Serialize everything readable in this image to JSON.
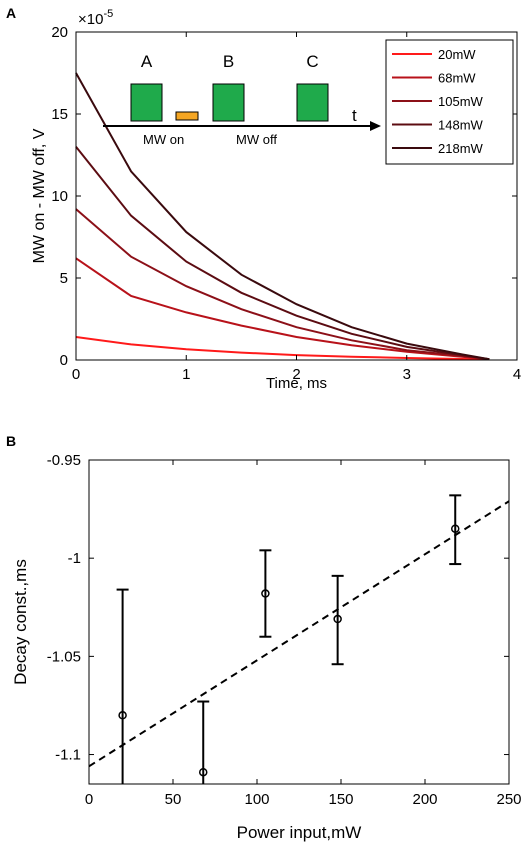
{
  "panels": {
    "a_label": "A",
    "b_label": "B"
  },
  "chart_data": [
    {
      "type": "line",
      "xlabel": "Time, ms",
      "ylabel": "MW on - MW off, V",
      "y_exponent_label": "×10",
      "y_exponent_power": "-5",
      "xlim": [
        0,
        4
      ],
      "ylim": [
        0,
        20
      ],
      "xticks": [
        "0",
        "1",
        "2",
        "3",
        "4"
      ],
      "yticks": [
        "0",
        "5",
        "10",
        "15",
        "20"
      ],
      "grid": false,
      "legend_position": "top-right",
      "series": [
        {
          "name": "20mW",
          "color": "#ff1a1a",
          "y0": 1.4,
          "x": [
            0,
            0.5,
            1,
            1.5,
            2,
            2.5,
            3,
            3.5,
            3.75
          ],
          "y": [
            1.4,
            0.95,
            0.65,
            0.45,
            0.3,
            0.2,
            0.12,
            0.06,
            0.03
          ]
        },
        {
          "name": "68mW",
          "color": "#b8121a",
          "y0": 6.2,
          "x": [
            0,
            0.5,
            1,
            1.5,
            2,
            2.5,
            3,
            3.5,
            3.75
          ],
          "y": [
            6.2,
            3.9,
            2.9,
            2.1,
            1.4,
            0.9,
            0.5,
            0.2,
            0.05
          ]
        },
        {
          "name": "105mW",
          "color": "#8c1018",
          "y0": 9.2,
          "x": [
            0,
            0.5,
            1,
            1.5,
            2,
            2.5,
            3,
            3.5,
            3.75
          ],
          "y": [
            9.2,
            6.3,
            4.5,
            3.1,
            2.0,
            1.2,
            0.6,
            0.25,
            0.05
          ]
        },
        {
          "name": "148mW",
          "color": "#5c0c12",
          "y0": 13.0,
          "x": [
            0,
            0.5,
            1,
            1.5,
            2,
            2.5,
            3,
            3.5,
            3.75
          ],
          "y": [
            13.0,
            8.8,
            6.0,
            4.1,
            2.7,
            1.6,
            0.8,
            0.3,
            0.05
          ]
        },
        {
          "name": "218mW",
          "color": "#3a0a0e",
          "y0": 17.5,
          "x": [
            0,
            0.5,
            1,
            1.5,
            2,
            2.5,
            3,
            3.5,
            3.75
          ],
          "y": [
            17.5,
            11.5,
            7.8,
            5.2,
            3.4,
            2.0,
            1.0,
            0.35,
            0.05
          ]
        }
      ],
      "inset": {
        "labels": [
          "A",
          "B",
          "C"
        ],
        "axis_label": "t",
        "mw_on": "MW on",
        "mw_off": "MW off",
        "pulse_color": "#1faa4b",
        "mw_color": "#f5a623"
      }
    },
    {
      "type": "scatter",
      "xlabel": "Power input,mW",
      "ylabel": "Decay const.,ms",
      "xlim": [
        0,
        250
      ],
      "ylim": [
        -1.115,
        -0.95
      ],
      "xticks": [
        "0",
        "50",
        "100",
        "150",
        "200",
        "250"
      ],
      "yticks": [
        "-1.1",
        "-1.05",
        "-1",
        "-0.95"
      ],
      "ytick_values": [
        -1.1,
        -1.05,
        -1.0,
        -0.95
      ],
      "grid": false,
      "points": [
        {
          "x": 20,
          "y": -1.08,
          "err_low": -1.115,
          "err_high": -1.016
        },
        {
          "x": 68,
          "y": -1.109,
          "err_low": -1.115,
          "err_high": -1.073
        },
        {
          "x": 105,
          "y": -1.018,
          "err_low": -1.04,
          "err_high": -0.996
        },
        {
          "x": 148,
          "y": -1.031,
          "err_low": -1.054,
          "err_high": -1.009
        },
        {
          "x": 218,
          "y": -0.985,
          "err_low": -1.003,
          "err_high": -0.968
        }
      ],
      "fit_line": {
        "x": [
          0,
          250
        ],
        "y": [
          -1.106,
          -0.971
        ]
      }
    }
  ]
}
